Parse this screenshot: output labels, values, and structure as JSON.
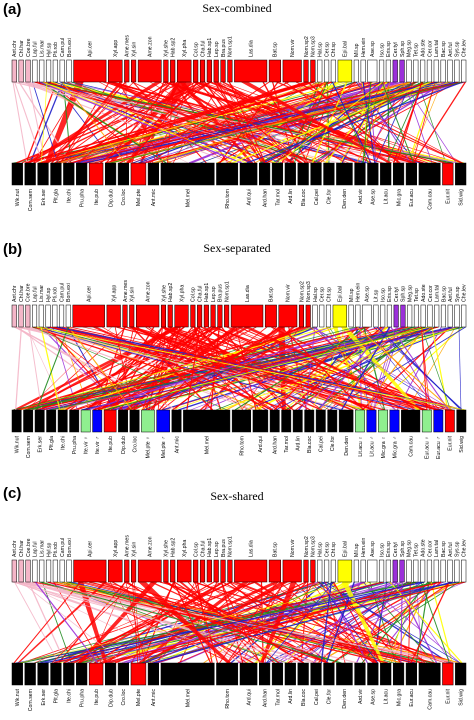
{
  "panels": [
    {
      "letter": "(a)",
      "title": "Sex-combined",
      "plants": [
        "Wik.nut",
        "Com.sem",
        "Erk.ser",
        "Plt.gla",
        "Ite.chi",
        "Pru.pha",
        "Ite.pub",
        "Dip.dub",
        "Cro.loc",
        "Mel.pte",
        "Ant.mic",
        "Mel.mel",
        "Rho.tom",
        "Ard.qui",
        "Ard.han",
        "Tar.mol",
        "Ard.lin",
        "Bla.coc",
        "Cal.pei",
        "Cle.for",
        "Den.den",
        "Ard.vir",
        "Ase.sp",
        "Lit.acu",
        "Mic.gra",
        "Eur.acu",
        "Cam.cau",
        "Eur.nit",
        "Sid.wig"
      ],
      "pollinators": [
        "Ant.chr",
        "Chl.har",
        "Coe.bre",
        "Lap.ful",
        "Lis.mar",
        "Hyl.sp",
        "Pti.rob",
        "Cam.pul",
        "Bom.exi",
        "Api.cer",
        "Xyl.app",
        "Ame.mes",
        "Xyl.sin",
        "Ame.zon",
        "Xyl.she",
        "Hab.sp2",
        "Xyl.pha",
        "Col.sp",
        "Cha.ful",
        "Hab.sp1",
        "Lep.sp",
        "Bra.pus",
        "Nom.sp1",
        "Las.dia",
        "Bat.sp",
        "Nom.vir",
        "Nom.sp2",
        "Nom.sp3",
        "Hal.sp",
        "Cer.sp",
        "Cht.sp",
        "Epi.bal",
        "Mil.sp",
        "Hem.ein",
        "Ase.sp",
        "Iso.sp",
        "Eris.sp",
        "Cer.tyl",
        "Sph.sp",
        "Meg.sp",
        "Tet.sp",
        "Ado.ste",
        "Cer.cor",
        "Lam.tal",
        "Bac.sp",
        "Ant.ful",
        "Sys.sp",
        "Che.lev"
      ]
    },
    {
      "letter": "(b)",
      "title": "Sex-separated",
      "plants": [
        "Wik.nut",
        "Com.sem",
        "Erk.ser",
        "Plt.gla",
        "Ite.chi",
        "Pru.pha",
        "Ite.vir ♀",
        "Ite.vir ♂",
        "Ite.pub",
        "Dip.dub",
        "Cro.loc",
        "Mel.pte ♀",
        "Mel.pte ♂",
        "Ant.mic",
        "Mel.mel",
        "Rho.tom",
        "Ard.qui",
        "Ard.han",
        "Tar.mol",
        "Ard.lin",
        "Bla.coc",
        "Cal.pei",
        "Cle.for",
        "Den.den",
        "Lit.acu ♀",
        "Lit.acu ♂",
        "Mic.gra ♀",
        "Mic.gra ♂",
        "Cam.cau",
        "Eur.acu ♀",
        "Eur.acu ♂",
        "Eur.nit",
        "Sid.wig"
      ],
      "pollinators": [
        "Ant.chr",
        "Chl.har",
        "Coe.bre",
        "Lap.ful",
        "Lis.mar",
        "Hyl.sp",
        "Pti.rob",
        "Cam.pul",
        "Bom.exi",
        "Api.cer",
        "Xyl.app",
        "Ame.mes",
        "Xyl.sin",
        "Ame.zon",
        "Xyl.she",
        "Hab.sp2",
        "Xyl.pha",
        "Col.sp",
        "Cha.ful",
        "Hab.sp1",
        "Lep.sp",
        "Bra.pus",
        "Nom.sp1",
        "Las.dia",
        "Bat.sp",
        "Nom.vir",
        "Nom.sp2",
        "Nom.sp3",
        "Hal.sp",
        "Cer.sp",
        "Cht.sp",
        "Epi.bal",
        "Mil.sp",
        "Hem.ein",
        "Ase.sp",
        "Lit.sp",
        "Iso.sp",
        "Eris.sp",
        "Cer.tyl",
        "Sph.sp",
        "Meg.sp",
        "Tet.sp",
        "Ado.ste",
        "Cer.cor",
        "Lam.tal",
        "Bac.sp",
        "Ant.ful",
        "Sys.sp",
        "Che.lev"
      ]
    },
    {
      "letter": "(c)",
      "title": "Sex-shared",
      "plants": [
        "Wik.nut",
        "Com.sem",
        "Erk.ser",
        "Plt.gla",
        "Ite.chi",
        "Pru.pha",
        "Ite.pub",
        "Dip.dub",
        "Cro.loc",
        "Mel.pte",
        "Ant.mic",
        "Mel.mel",
        "Rho.tom",
        "Ard.qui",
        "Ard.han",
        "Tar.mol",
        "Ard.lin",
        "Bla.coc",
        "Cal.pei",
        "Cle.for",
        "Den.den",
        "Ard.vir",
        "Ase.sp",
        "Lit.acu",
        "Mic.gra",
        "Eur.acu",
        "Cam.cau",
        "Eur.nit",
        "Sid.wig"
      ],
      "pollinators": [
        "Ant.chr",
        "Chl.har",
        "Coe.bre",
        "Lap.ful",
        "Lis.mar",
        "Hyl.sp",
        "Pti.rob",
        "Cam.pul",
        "Bom.exi",
        "Api.cer",
        "Xyl.app",
        "Ame.mes",
        "Xyl.sin",
        "Ame.zon",
        "Xyl.she",
        "Hab.sp2",
        "Xyl.pha",
        "Col.sp",
        "Cha.ful",
        "Hab.sp1",
        "Lep.sp",
        "Bra.pus",
        "Nom.sp1",
        "Las.dia",
        "Bat.sp",
        "Nom.vir",
        "Nom.sp2",
        "Nom.sp3",
        "Hal.sp",
        "Cer.sp",
        "Cht.sp",
        "Epi.bal",
        "Mil.sp",
        "Hem.ein",
        "Ase.sp",
        "Iso.sp",
        "Eris.sp",
        "Cer.tyl",
        "Sph.sp",
        "Meg.sp",
        "Tet.sp",
        "Ado.ste",
        "Cer.cor",
        "Lam.tal",
        "Bac.sp",
        "Ant.ful",
        "Sys.sp",
        "Che.lev"
      ]
    }
  ],
  "colors": {
    "pink": "#f4b6c8",
    "red": "#ff0000",
    "blue": "#1f1fc8",
    "yellow": "#ffff00",
    "orange": "#ffa500",
    "purple": "#9b30d9",
    "green": "#1e8a1e",
    "black": "#000000",
    "sex_female": "#8fef8f",
    "sex_male": "#0000ff"
  }
}
